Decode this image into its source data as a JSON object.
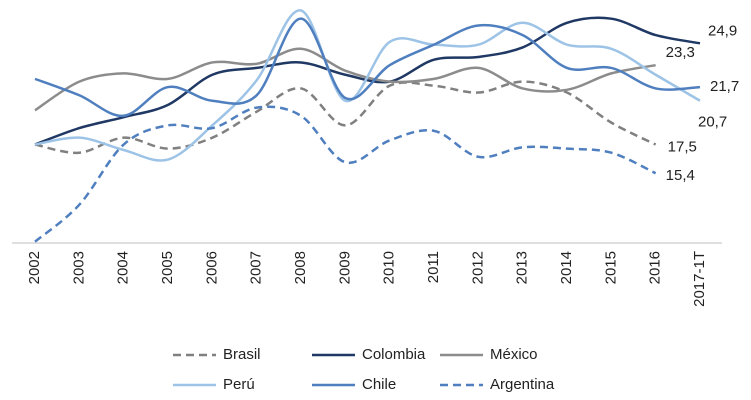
{
  "chart_data": {
    "type": "line",
    "categories": [
      "2002",
      "2003",
      "2004",
      "2005",
      "2006",
      "2007",
      "2008",
      "2009",
      "2010",
      "2011",
      "2012",
      "2013",
      "2014",
      "2015",
      "2016",
      "2017-1T"
    ],
    "ylim": [
      10.3,
      27.7
    ],
    "legend": "bottom",
    "series": [
      {
        "name": "Brasil",
        "color": "#808080",
        "dashed": true,
        "values": [
          17.5,
          16.9,
          18.0,
          17.2,
          18.0,
          19.9,
          21.6,
          18.9,
          21.8,
          21.8,
          21.3,
          22.1,
          21.3,
          19.1,
          17.5,
          null
        ],
        "value_labels": [
          null,
          null,
          null,
          null,
          null,
          null,
          null,
          null,
          null,
          null,
          null,
          null,
          null,
          null,
          "17,5",
          null
        ]
      },
      {
        "name": "Colombia",
        "color": "#1f3864",
        "dashed": false,
        "values": [
          17.5,
          18.7,
          19.5,
          20.4,
          22.6,
          23.1,
          23.5,
          22.6,
          22.1,
          23.7,
          23.9,
          24.6,
          26.4,
          26.7,
          25.5,
          24.9
        ],
        "value_labels": [
          null,
          null,
          null,
          null,
          null,
          null,
          null,
          null,
          null,
          null,
          null,
          null,
          null,
          null,
          null,
          "24,9"
        ]
      },
      {
        "name": "México",
        "color": "#8c8c8c",
        "dashed": false,
        "values": [
          20.0,
          22.1,
          22.7,
          22.3,
          23.5,
          23.4,
          24.5,
          22.9,
          22.1,
          22.3,
          23.1,
          21.6,
          21.5,
          22.7,
          23.3,
          null
        ],
        "value_labels": [
          null,
          null,
          null,
          null,
          null,
          null,
          null,
          null,
          null,
          null,
          null,
          null,
          null,
          null,
          "23,3",
          null
        ]
      },
      {
        "name": "Perú",
        "color": "#9dc3e6",
        "dashed": false,
        "values": [
          17.5,
          18.0,
          17.1,
          16.4,
          18.9,
          22.2,
          27.3,
          20.7,
          25.0,
          24.8,
          24.8,
          26.4,
          24.8,
          24.5,
          22.6,
          20.7
        ],
        "value_labels": [
          null,
          null,
          null,
          null,
          null,
          null,
          null,
          null,
          null,
          null,
          null,
          null,
          null,
          null,
          null,
          "20,7"
        ]
      },
      {
        "name": "Chile",
        "color": "#4f7fbf",
        "dashed": false,
        "values": [
          22.3,
          21.1,
          19.6,
          21.7,
          20.7,
          21.1,
          26.7,
          20.9,
          23.3,
          24.8,
          26.2,
          25.5,
          23.1,
          23.1,
          21.6,
          21.7
        ],
        "value_labels": [
          null,
          null,
          null,
          null,
          null,
          null,
          null,
          null,
          null,
          null,
          null,
          null,
          null,
          null,
          null,
          "21,7"
        ]
      },
      {
        "name": "Argentina",
        "color": "#4f7fbf",
        "dashed": true,
        "values": [
          10.4,
          13.1,
          17.5,
          18.9,
          18.7,
          20.2,
          19.6,
          16.2,
          17.8,
          18.5,
          16.6,
          17.3,
          17.2,
          16.9,
          15.4,
          null
        ],
        "value_labels": [
          null,
          null,
          null,
          null,
          null,
          null,
          null,
          null,
          null,
          null,
          null,
          null,
          null,
          null,
          "15,4",
          null
        ]
      }
    ]
  }
}
